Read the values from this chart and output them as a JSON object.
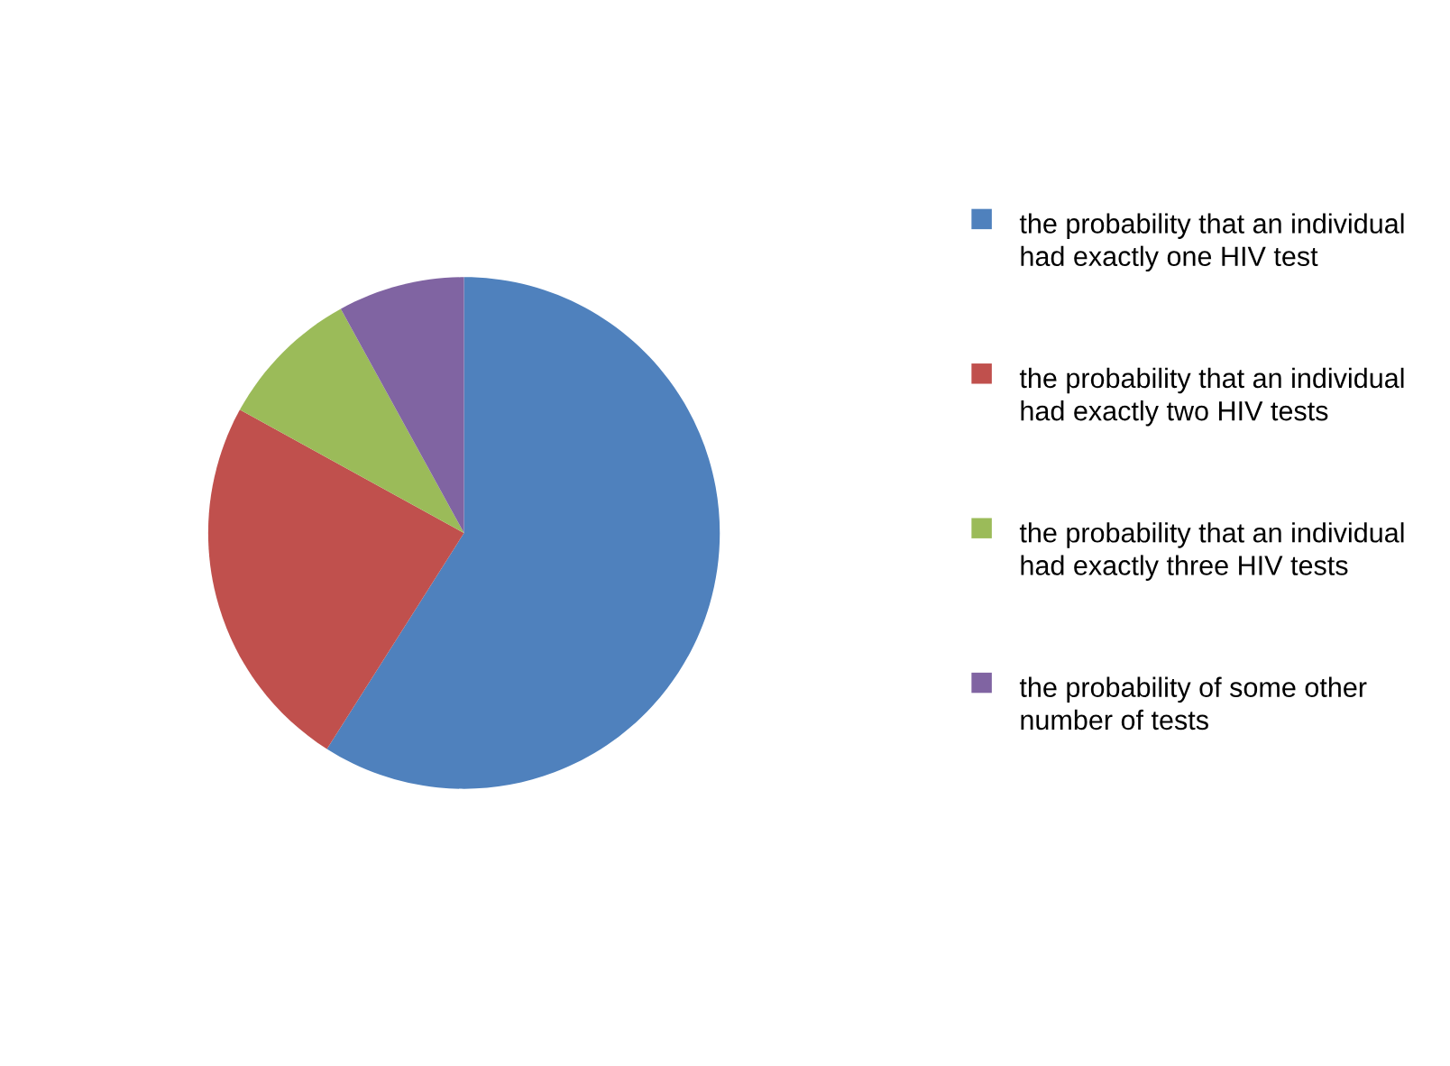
{
  "chart_data": {
    "type": "pie",
    "categories": [
      "the probability that an individual had exactly one HIV test",
      "the probability that an individual had exactly two HIV tests",
      "the probability that an individual had exactly three HIV tests",
      "the probability of some other number of tests"
    ],
    "values": [
      59,
      24,
      9,
      8
    ],
    "colors": [
      "#4f81bd",
      "#c0504d",
      "#9bbb59",
      "#8064a2"
    ],
    "legend": "right"
  }
}
